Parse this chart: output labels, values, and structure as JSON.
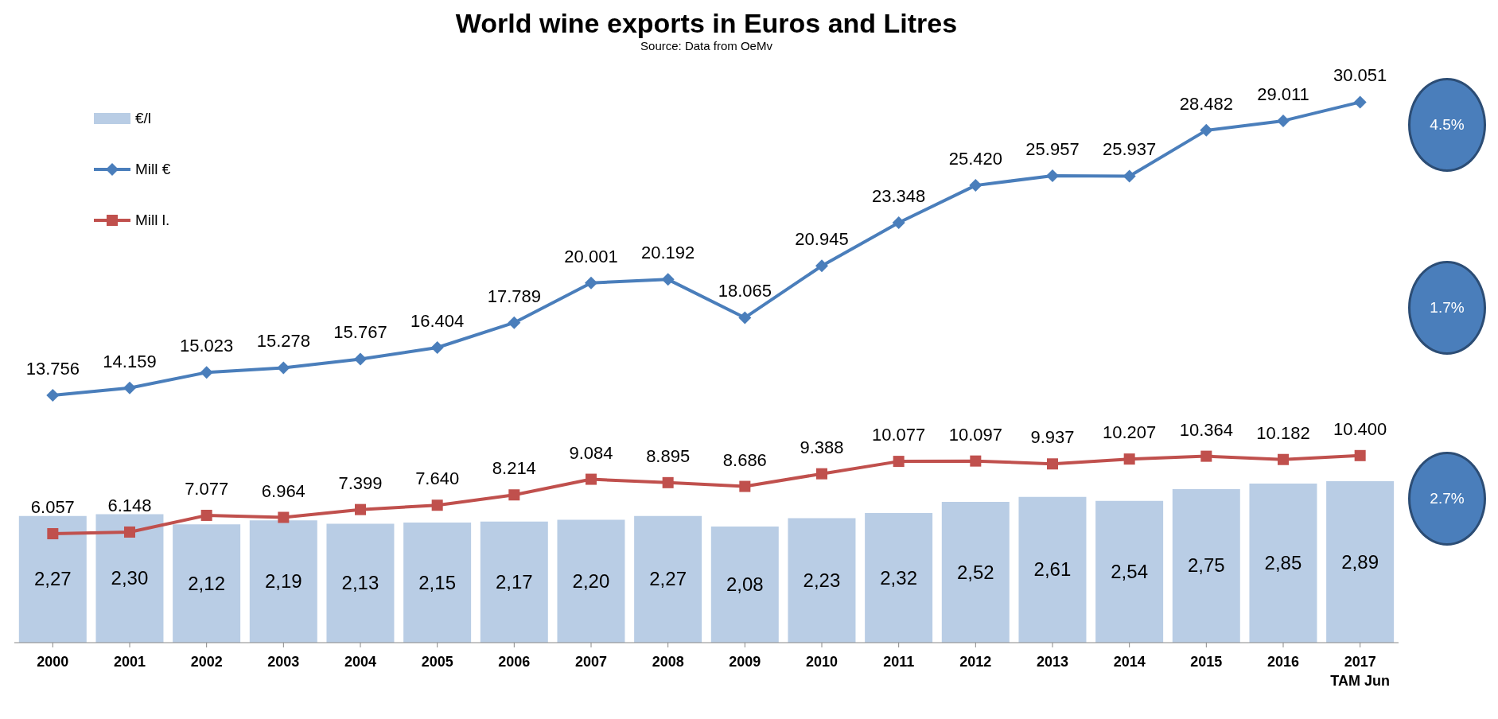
{
  "chart_data": {
    "type": "line",
    "title": "World wine exports in Euros and Litres",
    "subtitle": "Source: Data from OeMv",
    "categories": [
      "2000",
      "2001",
      "2002",
      "2003",
      "2004",
      "2005",
      "2006",
      "2007",
      "2008",
      "2009",
      "2010",
      "2011",
      "2012",
      "2013",
      "2014",
      "2015",
      "2016",
      "2017\nTAM Jun"
    ],
    "series": [
      {
        "name": "€/l",
        "type": "bar",
        "axis": "y2",
        "color": "#b9cde5",
        "values": [
          2.27,
          2.3,
          2.12,
          2.19,
          2.13,
          2.15,
          2.17,
          2.2,
          2.27,
          2.08,
          2.23,
          2.32,
          2.52,
          2.61,
          2.54,
          2.75,
          2.85,
          2.89
        ],
        "value_labels": [
          "2,27",
          "2,30",
          "2,12",
          "2,19",
          "2,13",
          "2,15",
          "2,17",
          "2,20",
          "2,27",
          "2,08",
          "2,23",
          "2,32",
          "2,52",
          "2,61",
          "2,54",
          "2,75",
          "2,85",
          "2,89"
        ]
      },
      {
        "name": "Mill €",
        "color": "#4a7ebb",
        "marker": "diamond",
        "values": [
          13756,
          14159,
          15023,
          15278,
          15767,
          16404,
          17789,
          20001,
          20192,
          18065,
          20945,
          23348,
          25420,
          25957,
          25937,
          28482,
          29011,
          30051
        ],
        "value_labels": [
          "13.756",
          "14.159",
          "15.023",
          "15.278",
          "15.767",
          "16.404",
          "17.789",
          "20.001",
          "20.192",
          "18.065",
          "20.945",
          "23.348",
          "25.420",
          "25.957",
          "25.937",
          "28.482",
          "29.011",
          "30.051"
        ]
      },
      {
        "name": "Mill l.",
        "color": "#c0504d",
        "marker": "square",
        "values": [
          6057,
          6148,
          7077,
          6964,
          7399,
          7640,
          8214,
          9084,
          8895,
          8686,
          9388,
          10077,
          10097,
          9937,
          10207,
          10364,
          10182,
          10400
        ],
        "value_labels": [
          "6.057",
          "6.148",
          "7.077",
          "6.964",
          "7.399",
          "7.640",
          "8.214",
          "9.084",
          "8.895",
          "8.686",
          "9.388",
          "10.077",
          "10.097",
          "9.937",
          "10.207",
          "10.364",
          "10.182",
          "10.400"
        ]
      }
    ],
    "annotations": [
      "4.5%",
      "1.7%",
      "2.7%"
    ],
    "legend": "top left",
    "grid": false
  }
}
